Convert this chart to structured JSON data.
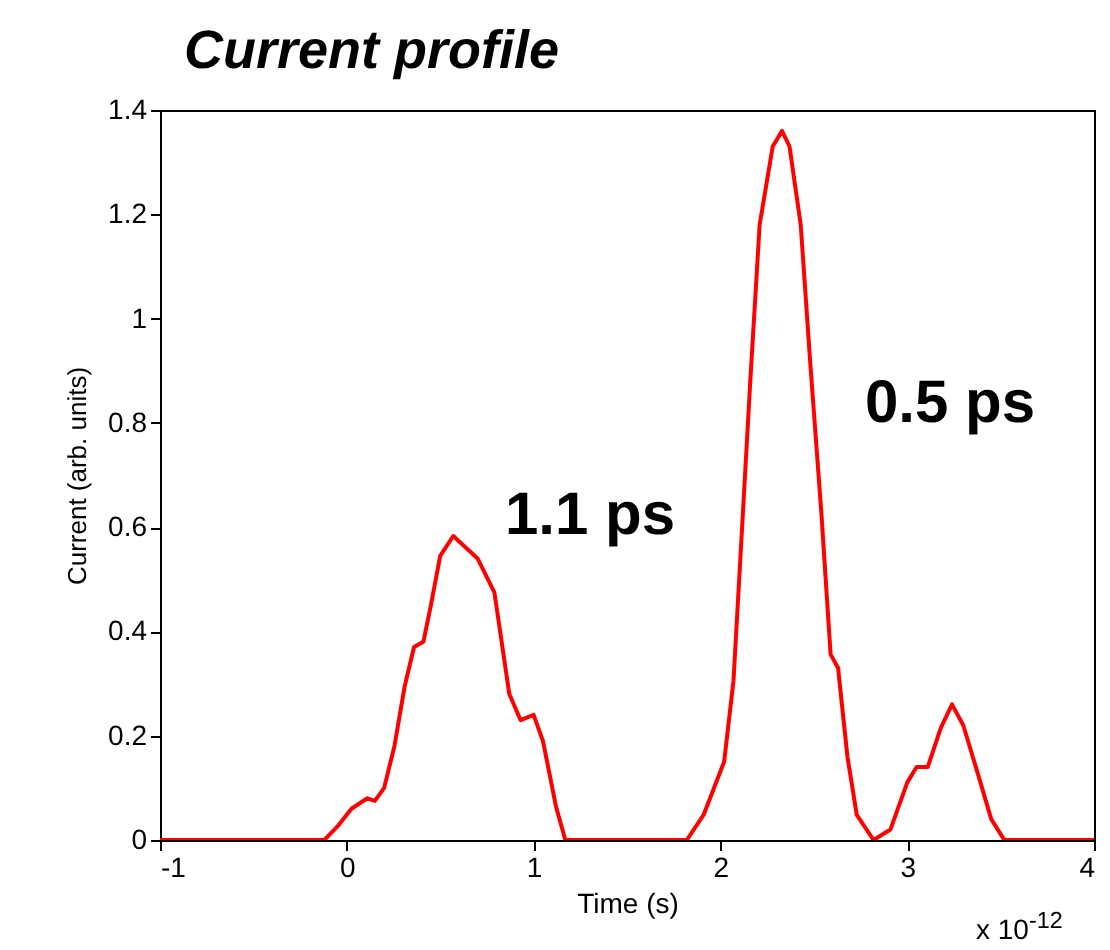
{
  "chart_data": {
    "type": "line",
    "title": "Current profile",
    "xlabel": "Time (s)",
    "ylabel": "Current (arb. units)",
    "annotations": [
      "1.1 ps",
      "0.5 ps",
      "x 10$^{-12}$"
    ],
    "xlim": [
      -1,
      4
    ],
    "xticks": [
      -1,
      0,
      1,
      2,
      3,
      4
    ],
    "ylim": [
      0,
      1.4
    ],
    "yticks": [
      0,
      0.2,
      0.4,
      0.6,
      0.8,
      1,
      1.2,
      1.4
    ],
    "grid": false,
    "series": [
      {
        "color": "#ff0000",
        "x": [
          -1,
          -0.12,
          -0.05,
          0.025,
          0.11,
          0.15,
          0.2,
          0.255,
          0.31,
          0.36,
          0.41,
          0.45,
          0.5,
          0.57,
          0.7,
          0.79,
          0.87,
          0.93,
          1.0,
          1.05,
          1.12,
          1.17,
          1.82,
          1.91,
          2.02,
          2.07,
          2.11,
          2.16,
          2.21,
          2.28,
          2.33,
          2.37,
          2.43,
          2.48,
          2.54,
          2.59,
          2.63,
          2.68,
          2.73,
          2.82,
          2.91,
          3.0,
          3.05,
          3.11,
          3.18,
          3.24,
          3.3,
          3.38,
          3.45,
          3.52,
          4
        ],
        "values": [
          0,
          0,
          0.026,
          0.06,
          0.08,
          0.075,
          0.1,
          0.18,
          0.295,
          0.37,
          0.38,
          0.45,
          0.545,
          0.583,
          0.54,
          0.475,
          0.28,
          0.23,
          0.24,
          0.19,
          0.064,
          0,
          0,
          0.048,
          0.15,
          0.305,
          0.56,
          0.88,
          1.18,
          1.33,
          1.36,
          1.33,
          1.18,
          0.92,
          0.63,
          0.356,
          0.33,
          0.16,
          0.048,
          0,
          0.02,
          0.11,
          0.14,
          0.14,
          0.215,
          0.26,
          0.22,
          0.125,
          0.04,
          0,
          0
        ]
      }
    ]
  }
}
